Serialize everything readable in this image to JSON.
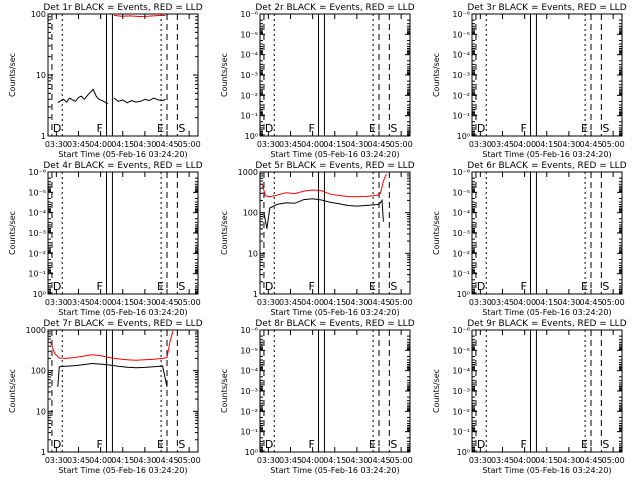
{
  "figure": {
    "x_ticks": [
      "03:30",
      "03:45",
      "04:00",
      "04:15",
      "04:30",
      "04:45",
      "05:00"
    ],
    "x_label": "Start Time (05-Feb-16 03:24:20)",
    "y_label": "Counts/sec",
    "marker_labels": [
      "D",
      "F",
      "E",
      "S"
    ],
    "colors": {
      "events": "#000000",
      "lld": "#ff0000",
      "axes": "#000000",
      "background": "#ffffff"
    }
  },
  "chart_data": [
    {
      "type": "line",
      "title": "Det 1r  BLACK = Events, RED = LLD",
      "xlabel": "Start Time (05-Feb-16 03:24:20)",
      "ylabel": "Counts/sec",
      "xlim": [
        "03:24:20",
        "05:06"
      ],
      "yscale": "log",
      "ylim": [
        1,
        100
      ],
      "ytick_labels": [
        "1",
        "10",
        "100"
      ],
      "ytick_values": [
        1,
        10,
        100
      ],
      "series": [
        {
          "segments": [
            {
              "x": [
                "03:31",
                "03:33",
                "03:35",
                "03:37",
                "03:39",
                "03:41",
                "03:43",
                "03:45",
                "03:47",
                "03:49",
                "03:51",
                "03:53",
                "03:55",
                "03:57",
                "03:59",
                "04:01",
                "04:03",
                "04:05"
              ],
              "y": [
                3.5,
                3.8,
                4.0,
                3.6,
                4.2,
                3.9,
                3.7,
                4.3,
                4.5,
                4.0,
                4.6,
                5.2,
                5.8,
                4.5,
                4.0,
                3.8,
                3.6,
                3.4
              ]
            },
            {
              "x": [
                "04:09",
                "04:12",
                "04:15",
                "04:18",
                "04:21",
                "04:24",
                "04:27",
                "04:30",
                "04:33",
                "04:36",
                "04:39",
                "04:42",
                "04:44"
              ],
              "y": [
                4.2,
                3.7,
                3.9,
                3.5,
                3.8,
                3.6,
                3.7,
                4.0,
                3.8,
                4.2,
                3.9,
                3.8,
                4.0
              ]
            }
          ]
        },
        {
          "color": "red",
          "segments": [
            {
              "x": [
                "04:09",
                "04:14",
                "04:20",
                "04:26",
                "04:32",
                "04:38",
                "04:44"
              ],
              "y": [
                95,
                92,
                93,
                91,
                92,
                94,
                95
              ]
            }
          ]
        }
      ]
    },
    {
      "type": "line",
      "title": "Det 2r  BLACK = Events, RED = LLD",
      "xlabel": "Start Time (05-Feb-16 03:24:20)",
      "ylabel": "Counts/sec",
      "xlim": [
        "03:24:20",
        "05:06"
      ],
      "yscale": "log",
      "ylim": [
        1,
        1e-06
      ],
      "ytick_labels": [
        "10⁰",
        "10⁻¹",
        "10⁻²",
        "10⁻³",
        "10⁻⁴",
        "10⁻⁵",
        "10⁻⁶"
      ],
      "ytick_values": [
        1,
        0.1,
        0.01,
        0.001,
        0.0001,
        1e-05,
        1e-06
      ],
      "series": []
    },
    {
      "type": "line",
      "title": "Det 3r  BLACK = Events, RED = LLD",
      "xlabel": "Start Time (05-Feb-16 03:24:20)",
      "ylabel": "Counts/sec",
      "xlim": [
        "03:24:20",
        "05:06"
      ],
      "yscale": "log",
      "ylim": [
        1,
        1e-06
      ],
      "ytick_labels": [
        "10⁰",
        "10⁻¹",
        "10⁻²",
        "10⁻³",
        "10⁻⁴",
        "10⁻⁵",
        "10⁻⁶"
      ],
      "ytick_values": [
        1,
        0.1,
        0.01,
        0.001,
        0.0001,
        1e-05,
        1e-06
      ],
      "series": []
    },
    {
      "type": "line",
      "title": "Det 4r  BLACK = Events, RED = LLD",
      "xlabel": "Start Time (05-Feb-16 03:24:20)",
      "ylabel": "Counts/sec",
      "xlim": [
        "03:24:20",
        "05:06"
      ],
      "yscale": "log",
      "ylim": [
        1,
        1e-06
      ],
      "ytick_labels": [
        "10⁰",
        "10⁻¹",
        "10⁻²",
        "10⁻³",
        "10⁻⁴",
        "10⁻⁵",
        "10⁻⁶"
      ],
      "ytick_values": [
        1,
        0.1,
        0.01,
        0.001,
        0.0001,
        1e-05,
        1e-06
      ],
      "series": []
    },
    {
      "type": "line",
      "title": "Det 5r  BLACK = Events, RED = LLD",
      "xlabel": "Start Time (05-Feb-16 03:24:20)",
      "ylabel": "Counts/sec",
      "xlim": [
        "03:24:20",
        "05:06"
      ],
      "yscale": "log",
      "ylim": [
        1,
        1000
      ],
      "ytick_labels": [
        "1",
        "10",
        "100",
        "1000"
      ],
      "ytick_values": [
        1,
        10,
        100,
        1000
      ],
      "series": [
        {
          "segments": [
            {
              "x": [
                "03:27",
                "03:29",
                "03:31",
                "03:36",
                "03:42",
                "03:48",
                "03:54",
                "04:00",
                "04:06",
                "04:12",
                "04:18",
                "04:24",
                "04:30",
                "04:36",
                "04:41",
                "04:45",
                "04:47",
                "04:48"
              ],
              "y": [
                100,
                40,
                130,
                160,
                175,
                170,
                210,
                220,
                205,
                180,
                165,
                150,
                145,
                150,
                155,
                160,
                200,
                60
              ]
            }
          ]
        },
        {
          "color": "red",
          "segments": [
            {
              "x": [
                "03:26",
                "03:28",
                "03:31",
                "03:36",
                "03:42",
                "03:48",
                "03:54",
                "04:00",
                "04:06",
                "04:12",
                "04:18",
                "04:24",
                "04:30",
                "04:36",
                "04:41",
                "04:44",
                "04:46",
                "04:48",
                "04:50"
              ],
              "y": [
                480,
                260,
                245,
                270,
                310,
                295,
                340,
                360,
                345,
                285,
                265,
                250,
                245,
                250,
                260,
                270,
                300,
                600,
                900
              ]
            }
          ]
        }
      ]
    },
    {
      "type": "line",
      "title": "Det 6r  BLACK = Events, RED = LLD",
      "xlabel": "Start Time (05-Feb-16 03:24:20)",
      "ylabel": "Counts/sec",
      "xlim": [
        "03:24:20",
        "05:06"
      ],
      "yscale": "log",
      "ylim": [
        1,
        1e-06
      ],
      "ytick_labels": [
        "10⁰",
        "10⁻¹",
        "10⁻²",
        "10⁻³",
        "10⁻⁴",
        "10⁻⁵",
        "10⁻⁶"
      ],
      "ytick_values": [
        1,
        0.1,
        0.01,
        0.001,
        0.0001,
        1e-05,
        1e-06
      ],
      "series": []
    },
    {
      "type": "line",
      "title": "Det 7r  BLACK = Events, RED = LLD",
      "xlabel": "Start Time (05-Feb-16 03:24:20)",
      "ylabel": "Counts/sec",
      "xlim": [
        "03:24:20",
        "05:06"
      ],
      "yscale": "log",
      "ylim": [
        1,
        1000
      ],
      "ytick_labels": [
        "1",
        "10",
        "100",
        "1000"
      ],
      "ytick_values": [
        1,
        10,
        100,
        1000
      ],
      "series": [
        {
          "segments": [
            {
              "x": [
                "03:31",
                "03:32",
                "03:36",
                "03:42",
                "03:48",
                "03:54",
                "04:00",
                "04:06",
                "04:12",
                "04:18",
                "04:24",
                "04:30",
                "04:36",
                "04:42",
                "04:45"
              ],
              "y": [
                40,
                125,
                128,
                132,
                140,
                150,
                145,
                138,
                128,
                122,
                118,
                120,
                125,
                130,
                40
              ]
            }
          ]
        },
        {
          "color": "red",
          "segments": [
            {
              "x": [
                "03:26",
                "03:29",
                "03:32",
                "03:36",
                "03:42",
                "03:48",
                "03:54",
                "04:00",
                "04:06",
                "04:12",
                "04:18",
                "04:24",
                "04:30",
                "04:36",
                "04:42",
                "04:45",
                "04:47",
                "04:49"
              ],
              "y": [
                500,
                260,
                205,
                200,
                210,
                225,
                245,
                235,
                210,
                195,
                185,
                180,
                185,
                190,
                200,
                210,
                520,
                950
              ]
            }
          ]
        }
      ]
    },
    {
      "type": "line",
      "title": "Det 8r  BLACK = Events, RED = LLD",
      "xlabel": "Start Time (05-Feb-16 03:24:20)",
      "ylabel": "Counts/sec",
      "xlim": [
        "03:24:20",
        "05:06"
      ],
      "yscale": "log",
      "ylim": [
        1,
        1e-06
      ],
      "ytick_labels": [
        "10⁰",
        "10⁻¹",
        "10⁻²",
        "10⁻³",
        "10⁻⁴",
        "10⁻⁵",
        "10⁻⁶"
      ],
      "ytick_values": [
        1,
        0.1,
        0.01,
        0.001,
        0.0001,
        1e-05,
        1e-06
      ],
      "series": []
    },
    {
      "type": "line",
      "title": "Det 9r  BLACK = Events, RED = LLD",
      "xlabel": "Start Time (05-Feb-16 03:24:20)",
      "ylabel": "Counts/sec",
      "xlim": [
        "03:24:20",
        "05:06"
      ],
      "yscale": "log",
      "ylim": [
        1,
        1e-06
      ],
      "ytick_labels": [
        "10⁰",
        "10⁻¹",
        "10⁻²",
        "10⁻³",
        "10⁻⁴",
        "10⁻⁵",
        "10⁻⁶"
      ],
      "ytick_values": [
        1,
        0.1,
        0.01,
        0.001,
        0.0001,
        1e-05,
        1e-06
      ],
      "series": []
    }
  ]
}
